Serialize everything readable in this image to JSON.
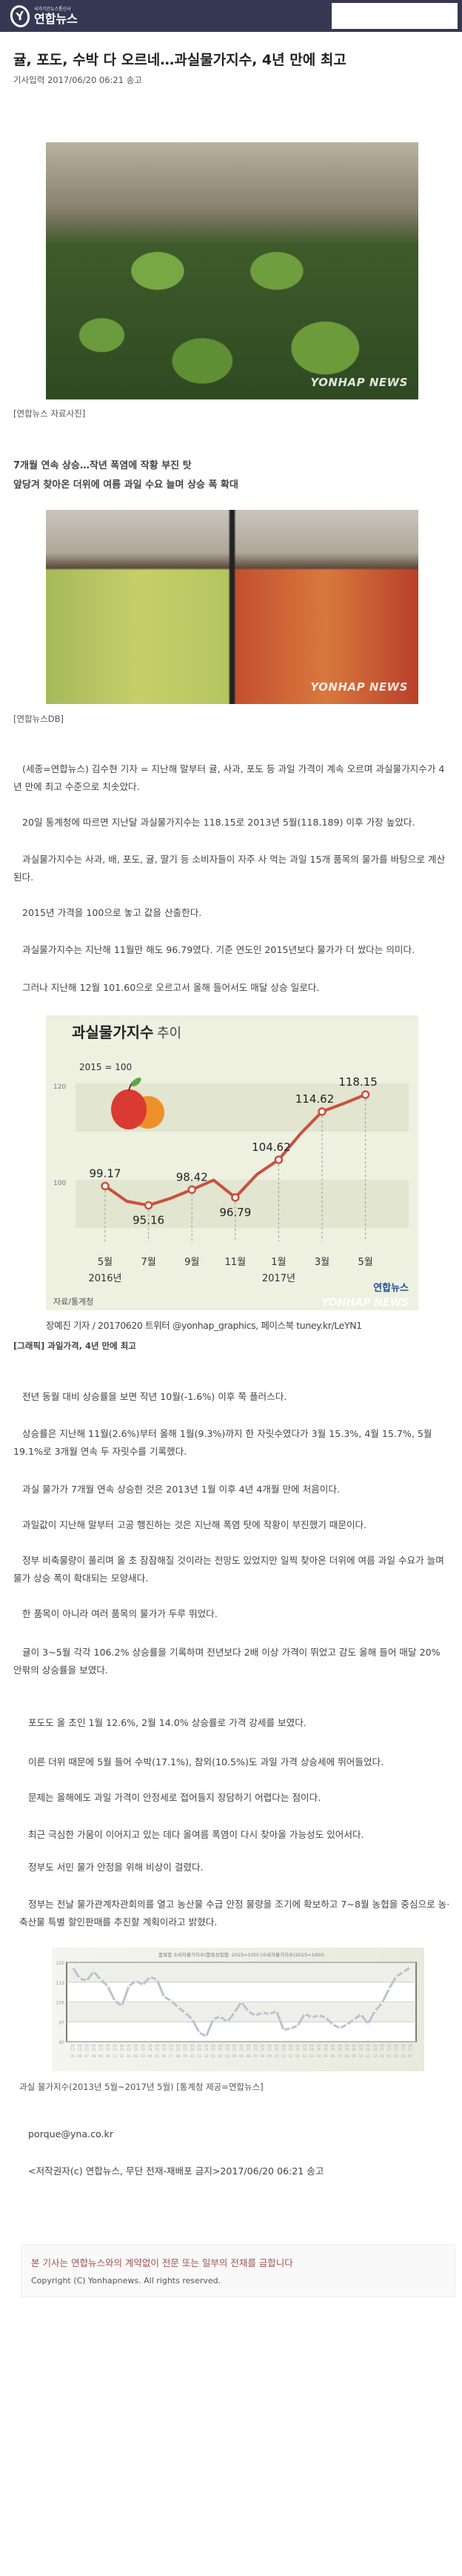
{
  "header": {
    "logo_small": "국가기간뉴스통신사",
    "logo_text": "연합뉴스",
    "search_placeholder": ""
  },
  "article": {
    "title": "귤, 포도, 수박 다 오르네…과실물가지수, 4년 만에 최고",
    "dateline": "기사입력 2017/06/20 06:21 송고",
    "photo1_caption": "[연합뉴스 자료사진]",
    "photo_watermark": "YONHAP NEWS",
    "subheadings": [
      "7개월 연속 상승…작년 폭염에 작황 부진 탓",
      "앞당겨 찾아온 더위에 여름 과일 수요 늘며 상승 폭 확대"
    ],
    "photo2_caption": "[연합뉴스DB]",
    "paragraphs1": [
      "(세종=연합뉴스) 김수현 기자 = 지난해 말부터 귤, 사과, 포도 등 과일 가격이 계속 오르며 과실물가지수가 4년 만에 최고 수준으로 치솟았다.",
      "20일 통계청에 따르면 지난달 과실물가지수는 118.15로 2013년 5월(118.189) 이후 가장 높았다.",
      "과실물가지수는 사과, 배, 포도, 귤, 딸기 등 소비자들이 자주 사 먹는 과일 15개 품목의 물가를 바탕으로 계산된다.",
      "2015년 가격을 100으로 놓고 값을 산출한다.",
      "과실물가지수는 지난해 11월만 해도 96.79였다. 기준 연도인 2015년보다 물가가 더 쌌다는 의미다.",
      "그러나 지난해 12월 101.60으로 오르고서 올해 들어서도 매달 상승 일로다."
    ],
    "graphic_credit": "장예진 기자 / 20170620 트위터 @yonhap_graphics, 페이스북 tuney.kr/LeYN1",
    "graphic_caption": "[그래픽] 과일가격, 4년 만에 최고",
    "paragraphs2": [
      "전년 동월 대비 상승률을 보면 작년 10월(-1.6%) 이후 쭉 플러스다.",
      "상승률은 지난해 11월(2.6%)부터 올해 1월(9.3%)까지 한 자릿수였다가 3월 15.3%, 4월 15.7%, 5월 19.1%로 3개월 연속 두 자릿수를 기록했다.",
      "과실 물가가 7개월 연속 상승한 것은 2013년 1월 이후 4년 4개월 만에 처음이다.",
      "과일값이 지난해 말부터 고공 행진하는 것은 지난해 폭염 탓에 작황이 부진했기 때문이다.",
      "정부 비축물량이 풀리며 올 초 잠잠해질 것이라는 전망도 있었지만 일찍 찾아온 더위에 여름 과일 수요가 늘며 물가 상승 폭이 확대되는 모양새다.",
      "한 품목이 아니라 여러 품목의 물가가 두루 뛰었다.",
      "귤이 3~5월 각각 106.2% 상승률을 기록하며 전년보다 2배 이상 가격이 뛰었고 감도 올해 들어 매달 20% 안팎의 상승률을 보였다."
    ],
    "paragraphs3": [
      "포도도 올 초인 1월 12.6%, 2월 14.0% 상승률로 가격 강세를 보였다.",
      "이른 더위 때문에 5월 들어 수박(17.1%), 참외(10.5%)도 과일 가격 상승세에 뛰어들었다.",
      "문제는 올해에도 과일 가격이 안정세로 접어들지 장담하기 어렵다는 점이다.",
      "최근 극심한 가뭄이 이어지고 있는 데다 올여름 폭염이 다시 찾아올 가능성도 있어서다.",
      "정부도 서민 물가 안정을 위해 비상이 걸렸다.",
      "정부는 전날 물가관계차관회의를 열고 농산물 수급 안정 물량을 조기에 확보하고 7~8월 농협을 중심으로 농·축산물 특별 할인판매를 추진할 계획이라고 밝혔다."
    ],
    "chart2_caption": "과실 물가지수(2013년 5월~2017년 5월) [통계청 제공=연합뉴스]",
    "email": "porque@yna.co.kr",
    "copyright_line": "<저작권자(c) 연합뉴스, 무단 전재-재배포 금지>2017/06/20 06:21 송고"
  },
  "notice": {
    "warning": "본 기사는 연합뉴스와의 계약없이 전문 또는 일부의 전재를 금합니다",
    "copyright": "Copyright (C) Yonhapnews. All rights reserved."
  },
  "chart_data": [
    {
      "type": "line",
      "title": "과실물가지수",
      "title_suffix": "추이",
      "base_note": "2015 = 100",
      "source": "자료/통계청",
      "logo": "연합뉴스",
      "watermark": "YONHAP NEWS",
      "x": [
        "2016-05",
        "2016-06",
        "2016-07",
        "2016-08",
        "2016-09",
        "2016-10",
        "2016-11",
        "2016-12",
        "2017-01",
        "2017-02",
        "2017-03",
        "2017-04",
        "2017-05"
      ],
      "values": [
        99.17,
        96.0,
        95.16,
        96.6,
        98.42,
        100.4,
        96.79,
        101.6,
        104.62,
        110.0,
        114.62,
        116.3,
        118.15
      ],
      "data_labels": [
        {
          "x": "2016-05",
          "label": "99.17"
        },
        {
          "x": "2016-07",
          "label": "95.16"
        },
        {
          "x": "2016-09",
          "label": "98.42"
        },
        {
          "x": "2016-11",
          "label": "96.79"
        },
        {
          "x": "2017-01",
          "label": "104.62"
        },
        {
          "x": "2017-03",
          "label": "114.62"
        },
        {
          "x": "2017-05",
          "label": "118.15"
        }
      ],
      "x_tick_labels": [
        {
          "x": "2016-05",
          "month": "5월",
          "year": "2016년"
        },
        {
          "x": "2016-07",
          "month": "7월"
        },
        {
          "x": "2016-09",
          "month": "9월"
        },
        {
          "x": "2016-11",
          "month": "11월"
        },
        {
          "x": "2017-01",
          "month": "1월",
          "year": "2017년"
        },
        {
          "x": "2017-03",
          "month": "3월"
        },
        {
          "x": "2017-05",
          "month": "5월"
        }
      ],
      "y_ticks": [
        "100",
        "120"
      ],
      "colors": {
        "line": "#c9503f",
        "background": "#eef0e0",
        "band": "#e2e5cf"
      }
    },
    {
      "type": "line",
      "title": "품목별 소비자물가지수(품목성질별: 2015=100) (소비자물가지수(2015=100))",
      "x": [
        "2013-05",
        "2013-06",
        "2013-07",
        "2013-08",
        "2013-09",
        "2013-10",
        "2013-11",
        "2013-12",
        "2014-01",
        "2014-02",
        "2014-03",
        "2014-04",
        "2014-05",
        "2014-06",
        "2014-07",
        "2014-08",
        "2014-09",
        "2014-10",
        "2014-11",
        "2014-12",
        "2015-01",
        "2015-02",
        "2015-03",
        "2015-04",
        "2015-05",
        "2015-06",
        "2015-07",
        "2015-08",
        "2015-09",
        "2015-10",
        "2015-11",
        "2015-12",
        "2016-01",
        "2016-02",
        "2016-03",
        "2016-04",
        "2016-05",
        "2016-06",
        "2016-07",
        "2016-08",
        "2016-09",
        "2016-10",
        "2016-11",
        "2016-12",
        "2017-01",
        "2017-02",
        "2017-03",
        "2017-04",
        "2017-05"
      ],
      "values": [
        118.19,
        114,
        113,
        116.5,
        113.5,
        111,
        105.5,
        103.5,
        111,
        113,
        111.5,
        114.5,
        113.5,
        107,
        105.5,
        103,
        101,
        98.5,
        93.5,
        92,
        98.5,
        99.5,
        97.5,
        101,
        105,
        101.5,
        99.9,
        101,
        100.5,
        101.5,
        94.5,
        95,
        96,
        100.5,
        99.2,
        99.9,
        99.17,
        96.5,
        95.16,
        96.5,
        98.42,
        100.3,
        96.79,
        101.6,
        104.62,
        110,
        114.62,
        116.3,
        118.15
      ],
      "y_tick_labels": [
        "90",
        "97",
        "105",
        "113",
        "120"
      ],
      "ylim": [
        90,
        120
      ],
      "grid": true,
      "colors": {
        "line": "#b9c4cc",
        "background": "#f1f2ea"
      }
    }
  ]
}
